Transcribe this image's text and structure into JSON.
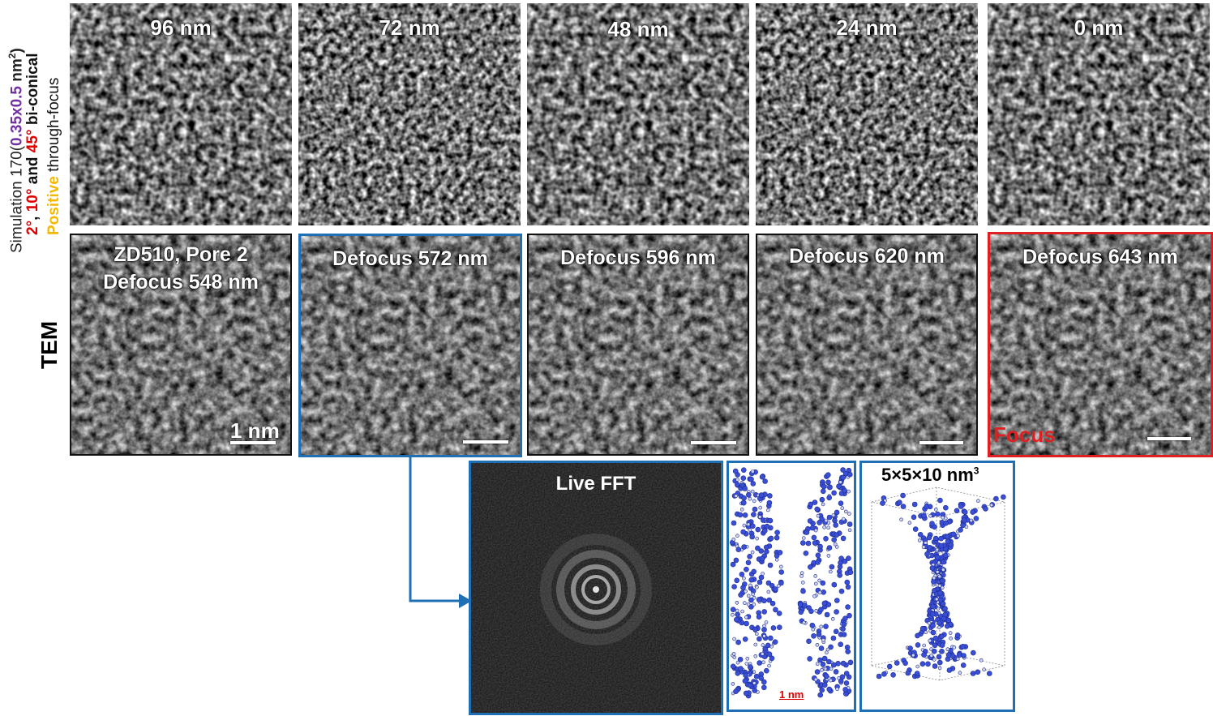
{
  "side_label": {
    "line1_prefix": "Simulation 170(",
    "line1_value": "0.35x0.5",
    "line1_unit": " nm",
    "line1_sup": "2",
    "line1_end": ")",
    "line2_a": "2°",
    "line2_sep1": ", ",
    "line2_b": "10°",
    "line2_and": " and ",
    "line2_c": "45°",
    "line2_rest": " bi-conical",
    "line3_a": "Positive",
    "line3_rest": " through-focus",
    "tem_label": "TEM"
  },
  "colors": {
    "purple": "#7030a0",
    "red": "#e00000",
    "yellow": "#f5b800",
    "blue_frame": "#1f6fb5",
    "red_frame": "#e02020"
  },
  "simulation_panels": [
    {
      "label": "96 nm"
    },
    {
      "label": "72 nm"
    },
    {
      "label": "48 nm"
    },
    {
      "label": "24 nm"
    },
    {
      "label": "0 nm"
    }
  ],
  "tem_panels": [
    {
      "line1": "ZD510, Pore 2",
      "line2": "Defocus 548 nm",
      "scale_label": "1 nm"
    },
    {
      "line1": "Defocus 572 nm",
      "line2": "",
      "scale_label": ""
    },
    {
      "line1": "Defocus 596 nm",
      "line2": "",
      "scale_label": ""
    },
    {
      "line1": "Defocus 620 nm",
      "line2": "",
      "scale_label": ""
    },
    {
      "line1": "Defocus 643 nm",
      "line2": "",
      "scale_label": "",
      "focus_label": "Focus"
    }
  ],
  "fft": {
    "label": "Live FFT"
  },
  "model_slice": {
    "scale_label": "1 nm"
  },
  "model_3d": {
    "label_main": "5×5×10 nm",
    "label_sup": "3"
  }
}
